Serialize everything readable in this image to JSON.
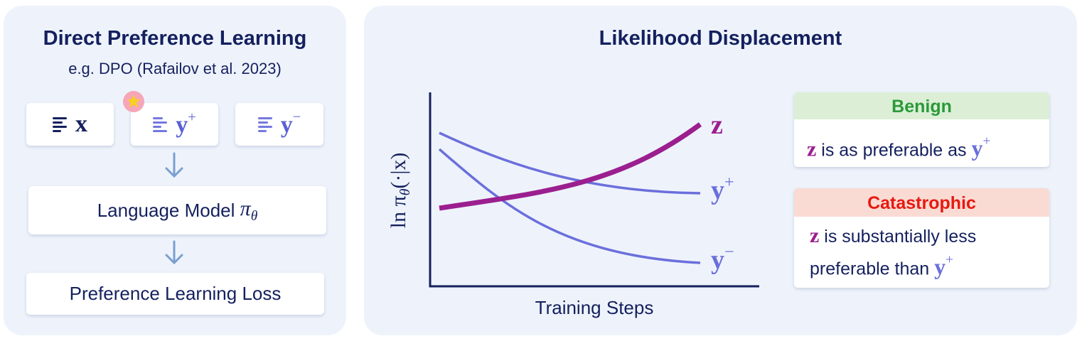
{
  "left_panel": {
    "title": "Direct Preference Learning",
    "subtitle": "e.g. DPO (Rafailov et al. 2023)",
    "inputs": [
      {
        "symbol": "x"
      },
      {
        "symbol": "y",
        "sup": "+"
      },
      {
        "symbol": "y",
        "sup": "−"
      }
    ],
    "model": {
      "text": "Language Model",
      "symbol": "π",
      "sub": "θ"
    },
    "loss": "Preference Learning Loss"
  },
  "right_panel": {
    "title": "Likelihood Displacement",
    "y_axis_label": {
      "prefix": "ln π",
      "sub": "θ",
      "suffix": "(·|x)"
    },
    "x_axis_label": "Training Steps",
    "curve_labels": [
      {
        "symbol": "z"
      },
      {
        "symbol": "y",
        "sup": "+"
      },
      {
        "symbol": "y",
        "sup": "−"
      }
    ],
    "benign": {
      "header": "Benign",
      "symbol": "z",
      "text": "is as preferable as",
      "target": {
        "symbol": "y",
        "sup": "+"
      }
    },
    "catastrophic": {
      "header": "Catastrophic",
      "symbol": "z",
      "text": "is substantially less preferable than",
      "target": {
        "symbol": "y",
        "sup": "+"
      }
    }
  }
}
